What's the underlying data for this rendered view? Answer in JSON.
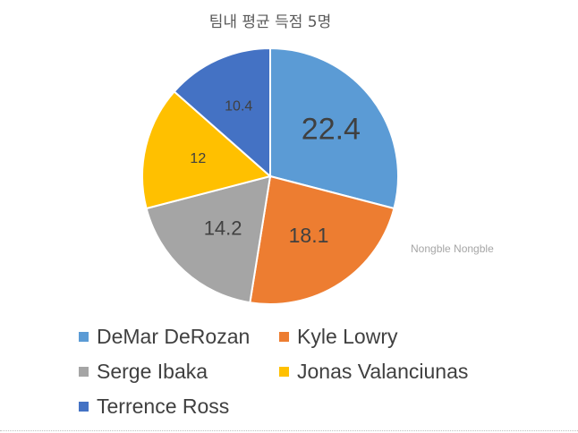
{
  "chart_data": {
    "type": "pie",
    "title": "팀내 평균 득점 5명",
    "categories": [
      "DeMar DeRozan",
      "Kyle Lowry",
      "Serge Ibaka",
      "Jonas Valanciunas",
      "Terrence Ross"
    ],
    "values": [
      22.4,
      18.1,
      14.2,
      12,
      10.4
    ],
    "labels": [
      "22.4",
      "18.1",
      "14.2",
      "12",
      "10.4"
    ],
    "colors": [
      "#5b9bd5",
      "#ed7d31",
      "#a5a5a5",
      "#ffc000",
      "#4472c4"
    ],
    "legend_position": "bottom"
  },
  "watermark": "Nongble Nongble"
}
